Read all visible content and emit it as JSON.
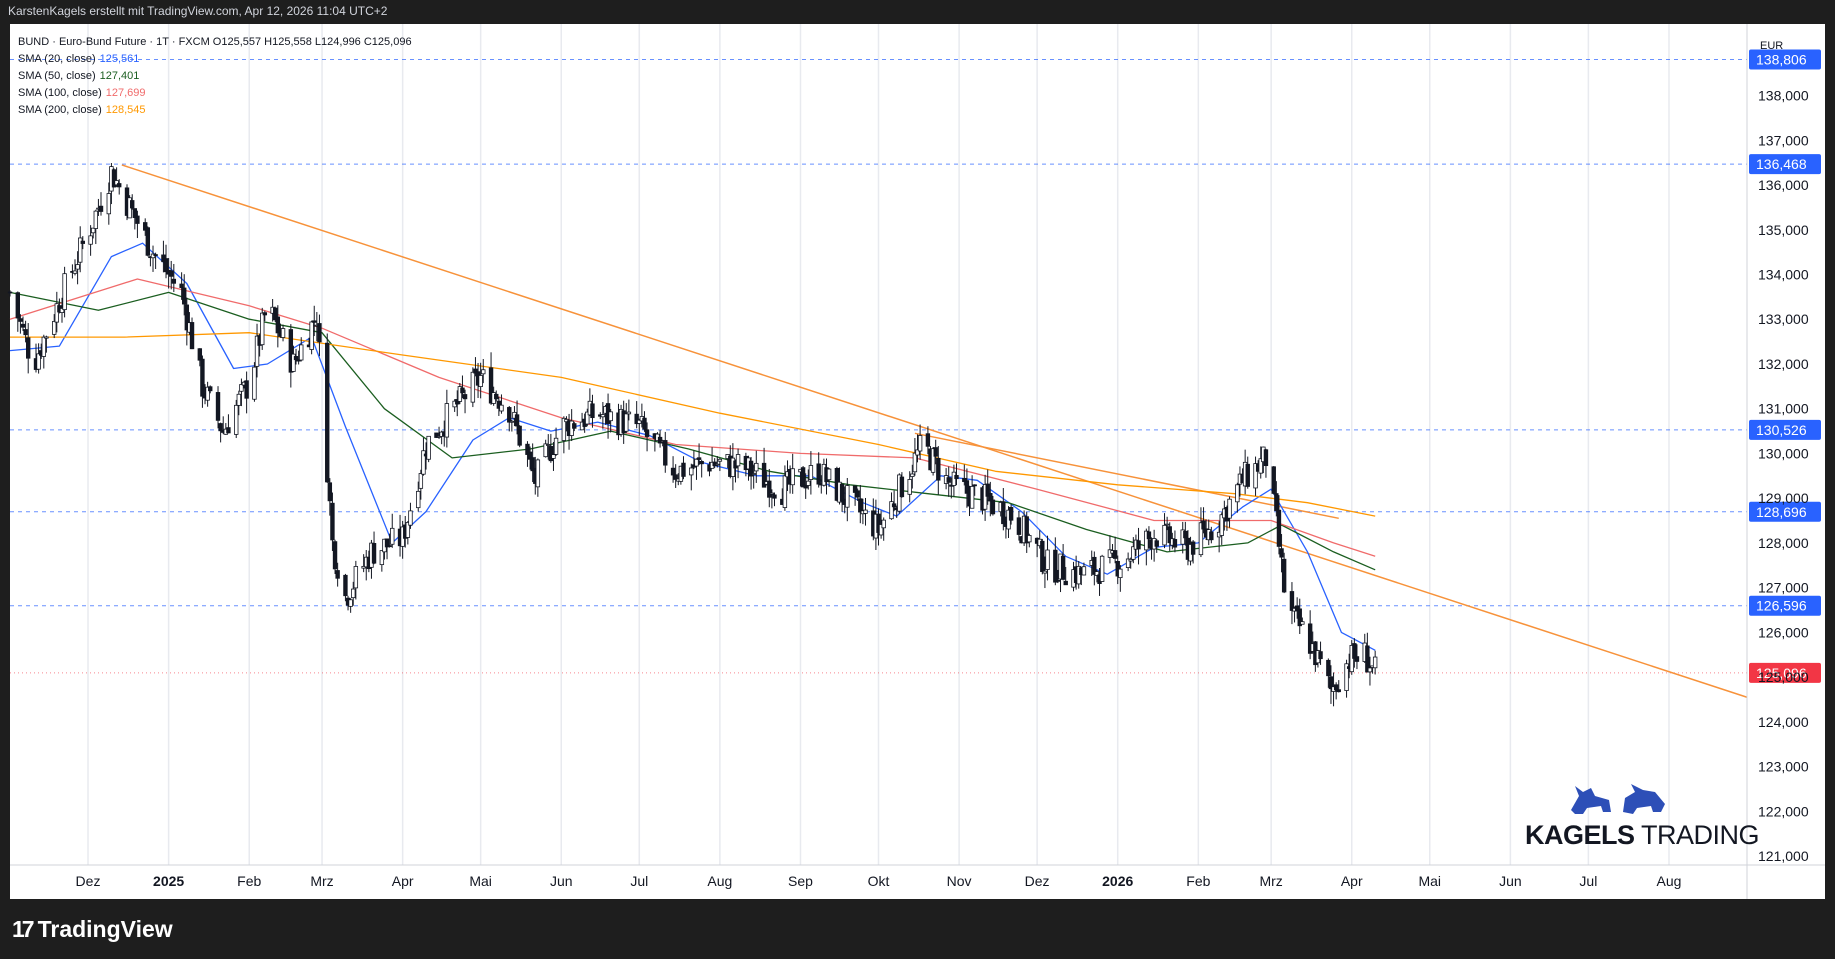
{
  "header": {
    "caption": "KarstenKagels erstellt mit TradingView.com, Apr 12, 2026 11:04 UTC+2"
  },
  "footer": {
    "logo_text": "TradingView"
  },
  "symbol_line": "BUND · Euro-Bund Future · 1T · FXCM  O125,557  H125,558  L124,996  C125,096",
  "indicators": [
    {
      "label": "SMA (20, close)",
      "value": "125,561",
      "color": "#2962ff"
    },
    {
      "label": "SMA (50, close)",
      "value": "127,401",
      "color": "#1b5e20"
    },
    {
      "label": "SMA (100, close)",
      "value": "127,699",
      "color": "#f06b6b"
    },
    {
      "label": "SMA (200, close)",
      "value": "128,545",
      "color": "#ff9800"
    }
  ],
  "brand": {
    "bold": "KAGELS",
    "thin": " TRADING"
  },
  "currency": "EUR",
  "colors": {
    "up": "#26a69a",
    "down": "#7a1f1f",
    "candle_body": "#131722",
    "trendline": "#f7923a",
    "level_line": "#2962ff",
    "last_price_bg": "#f23645",
    "level_label_bg": "#2962ff"
  },
  "chart_data": {
    "type": "candlestick",
    "y_axis": {
      "min": 120.8,
      "max": 139.6,
      "step": 1,
      "tick_labels": [
        "121,000",
        "122,000",
        "123,000",
        "124,000",
        "125,000",
        "126,000",
        "127,000",
        "128,000",
        "129,000",
        "130,000",
        "131,000",
        "132,000",
        "133,000",
        "134,000",
        "135,000",
        "136,000",
        "137,000",
        "138,000"
      ]
    },
    "x_axis": {
      "labels": [
        {
          "text": "Dez",
          "date": "2024-12-01",
          "bold": false
        },
        {
          "text": "2025",
          "date": "2025-01-01",
          "bold": true
        },
        {
          "text": "Feb",
          "date": "2025-02-01",
          "bold": false
        },
        {
          "text": "Mrz",
          "date": "2025-03-01",
          "bold": false
        },
        {
          "text": "Apr",
          "date": "2025-04-01",
          "bold": false
        },
        {
          "text": "Mai",
          "date": "2025-05-01",
          "bold": false
        },
        {
          "text": "Jun",
          "date": "2025-06-01",
          "bold": false
        },
        {
          "text": "Jul",
          "date": "2025-07-01",
          "bold": false
        },
        {
          "text": "Aug",
          "date": "2025-08-01",
          "bold": false
        },
        {
          "text": "Sep",
          "date": "2025-09-01",
          "bold": false
        },
        {
          "text": "Okt",
          "date": "2025-10-01",
          "bold": false
        },
        {
          "text": "Nov",
          "date": "2025-11-01",
          "bold": false
        },
        {
          "text": "Dez",
          "date": "2025-12-01",
          "bold": false
        },
        {
          "text": "2026",
          "date": "2026-01-01",
          "bold": true
        },
        {
          "text": "Feb",
          "date": "2026-02-01",
          "bold": false
        },
        {
          "text": "Mrz",
          "date": "2026-03-01",
          "bold": false
        },
        {
          "text": "Apr",
          "date": "2026-04-01",
          "bold": false
        },
        {
          "text": "Mai",
          "date": "2026-05-01",
          "bold": false
        },
        {
          "text": "Jun",
          "date": "2026-06-01",
          "bold": false
        },
        {
          "text": "Jul",
          "date": "2026-07-01",
          "bold": false
        },
        {
          "text": "Aug",
          "date": "2026-08-01",
          "bold": false
        }
      ],
      "range": [
        "2024-11-01",
        "2026-08-31"
      ]
    },
    "levels": [
      {
        "value": 138.806,
        "label": "138,806"
      },
      {
        "value": 136.468,
        "label": "136,468"
      },
      {
        "value": 130.526,
        "label": "130,526"
      },
      {
        "value": 128.696,
        "label": "128,696"
      },
      {
        "value": 126.596,
        "label": "126,596"
      }
    ],
    "last_price": {
      "value": 125.096,
      "label": "125,096"
    },
    "trendlines": [
      {
        "from": {
          "date": "2024-12-14",
          "value": 136.45
        },
        "to": {
          "date": "2026-08-31",
          "value": 124.55
        }
      },
      {
        "from": {
          "date": "2025-10-15",
          "value": 130.45
        },
        "to": {
          "date": "2026-03-27",
          "value": 128.55
        }
      }
    ],
    "price_path": [
      {
        "date": "2024-11-01",
        "value": 133.6
      },
      {
        "date": "2024-11-10",
        "value": 132.0
      },
      {
        "date": "2024-11-22",
        "value": 133.7
      },
      {
        "date": "2024-12-03",
        "value": 135.2
      },
      {
        "date": "2024-12-10",
        "value": 136.3
      },
      {
        "date": "2024-12-18",
        "value": 135.4
      },
      {
        "date": "2024-12-26",
        "value": 134.5
      },
      {
        "date": "2025-01-06",
        "value": 133.6
      },
      {
        "date": "2025-01-14",
        "value": 131.5
      },
      {
        "date": "2025-01-22",
        "value": 130.5
      },
      {
        "date": "2025-02-01",
        "value": 131.6
      },
      {
        "date": "2025-02-08",
        "value": 133.3
      },
      {
        "date": "2025-02-18",
        "value": 132.0
      },
      {
        "date": "2025-02-27",
        "value": 133.1
      },
      {
        "date": "2025-03-05",
        "value": 128.0
      },
      {
        "date": "2025-03-10",
        "value": 126.8
      },
      {
        "date": "2025-03-20",
        "value": 127.8
      },
      {
        "date": "2025-04-01",
        "value": 128.1
      },
      {
        "date": "2025-04-10",
        "value": 130.2
      },
      {
        "date": "2025-04-22",
        "value": 131.1
      },
      {
        "date": "2025-05-01",
        "value": 131.7
      },
      {
        "date": "2025-05-12",
        "value": 131.0
      },
      {
        "date": "2025-05-22",
        "value": 129.4
      },
      {
        "date": "2025-06-01",
        "value": 130.6
      },
      {
        "date": "2025-06-15",
        "value": 130.9
      },
      {
        "date": "2025-07-01",
        "value": 130.6
      },
      {
        "date": "2025-07-15",
        "value": 129.6
      },
      {
        "date": "2025-07-28",
        "value": 129.8
      },
      {
        "date": "2025-08-10",
        "value": 129.7
      },
      {
        "date": "2025-08-25",
        "value": 129.2
      },
      {
        "date": "2025-09-08",
        "value": 129.6
      },
      {
        "date": "2025-09-20",
        "value": 128.9
      },
      {
        "date": "2025-10-01",
        "value": 128.3
      },
      {
        "date": "2025-10-10",
        "value": 129.3
      },
      {
        "date": "2025-10-18",
        "value": 130.2
      },
      {
        "date": "2025-10-28",
        "value": 129.3
      },
      {
        "date": "2025-11-10",
        "value": 129.0
      },
      {
        "date": "2025-11-22",
        "value": 128.6
      },
      {
        "date": "2025-12-05",
        "value": 127.5
      },
      {
        "date": "2025-12-18",
        "value": 127.3
      },
      {
        "date": "2026-01-03",
        "value": 127.6
      },
      {
        "date": "2026-01-15",
        "value": 128.2
      },
      {
        "date": "2026-01-28",
        "value": 127.9
      },
      {
        "date": "2026-02-08",
        "value": 128.4
      },
      {
        "date": "2026-02-18",
        "value": 129.4
      },
      {
        "date": "2026-02-27",
        "value": 129.9
      },
      {
        "date": "2026-03-03",
        "value": 128.4
      },
      {
        "date": "2026-03-07",
        "value": 126.5
      },
      {
        "date": "2026-03-15",
        "value": 125.9
      },
      {
        "date": "2026-03-24",
        "value": 124.7
      },
      {
        "date": "2026-03-31",
        "value": 125.4
      },
      {
        "date": "2026-04-06",
        "value": 125.5
      },
      {
        "date": "2026-04-10",
        "value": 125.1
      }
    ],
    "sma_lines": [
      {
        "name": "SMA (20, close)",
        "color": "#2962ff",
        "points": [
          {
            "date": "2024-11-01",
            "value": 132.3
          },
          {
            "date": "2024-11-20",
            "value": 132.4
          },
          {
            "date": "2024-12-10",
            "value": 134.4
          },
          {
            "date": "2024-12-22",
            "value": 134.7
          },
          {
            "date": "2025-01-08",
            "value": 133.8
          },
          {
            "date": "2025-01-26",
            "value": 131.9
          },
          {
            "date": "2025-02-08",
            "value": 132.0
          },
          {
            "date": "2025-02-25",
            "value": 132.6
          },
          {
            "date": "2025-03-10",
            "value": 130.6
          },
          {
            "date": "2025-03-28",
            "value": 128.0
          },
          {
            "date": "2025-04-10",
            "value": 128.7
          },
          {
            "date": "2025-04-28",
            "value": 130.3
          },
          {
            "date": "2025-05-12",
            "value": 130.8
          },
          {
            "date": "2025-05-28",
            "value": 130.5
          },
          {
            "date": "2025-06-15",
            "value": 130.7
          },
          {
            "date": "2025-07-05",
            "value": 130.4
          },
          {
            "date": "2025-07-25",
            "value": 129.8
          },
          {
            "date": "2025-08-15",
            "value": 129.5
          },
          {
            "date": "2025-09-05",
            "value": 129.5
          },
          {
            "date": "2025-09-25",
            "value": 128.9
          },
          {
            "date": "2025-10-08",
            "value": 128.6
          },
          {
            "date": "2025-10-25",
            "value": 129.5
          },
          {
            "date": "2025-11-08",
            "value": 129.4
          },
          {
            "date": "2025-11-25",
            "value": 128.7
          },
          {
            "date": "2025-12-12",
            "value": 127.7
          },
          {
            "date": "2025-12-28",
            "value": 127.3
          },
          {
            "date": "2026-01-15",
            "value": 127.9
          },
          {
            "date": "2026-02-01",
            "value": 128.0
          },
          {
            "date": "2026-02-18",
            "value": 128.8
          },
          {
            "date": "2026-03-01",
            "value": 129.2
          },
          {
            "date": "2026-03-15",
            "value": 127.8
          },
          {
            "date": "2026-03-28",
            "value": 126.0
          },
          {
            "date": "2026-04-10",
            "value": 125.6
          }
        ]
      },
      {
        "name": "SMA (50, close)",
        "color": "#1b5e20",
        "points": [
          {
            "date": "2024-11-01",
            "value": 133.6
          },
          {
            "date": "2024-12-05",
            "value": 133.2
          },
          {
            "date": "2025-01-01",
            "value": 133.6
          },
          {
            "date": "2025-02-01",
            "value": 133.0
          },
          {
            "date": "2025-03-01",
            "value": 132.7
          },
          {
            "date": "2025-03-25",
            "value": 131.0
          },
          {
            "date": "2025-04-20",
            "value": 129.9
          },
          {
            "date": "2025-05-20",
            "value": 130.1
          },
          {
            "date": "2025-06-20",
            "value": 130.5
          },
          {
            "date": "2025-07-20",
            "value": 130.1
          },
          {
            "date": "2025-08-20",
            "value": 129.6
          },
          {
            "date": "2025-09-20",
            "value": 129.3
          },
          {
            "date": "2025-10-20",
            "value": 129.1
          },
          {
            "date": "2025-11-20",
            "value": 128.9
          },
          {
            "date": "2025-12-20",
            "value": 128.3
          },
          {
            "date": "2026-01-20",
            "value": 127.8
          },
          {
            "date": "2026-02-20",
            "value": 128.0
          },
          {
            "date": "2026-03-05",
            "value": 128.4
          },
          {
            "date": "2026-03-25",
            "value": 127.8
          },
          {
            "date": "2026-04-10",
            "value": 127.4
          }
        ]
      },
      {
        "name": "SMA (100, close)",
        "color": "#f06b6b",
        "points": [
          {
            "date": "2024-11-01",
            "value": 133.0
          },
          {
            "date": "2024-12-20",
            "value": 133.9
          },
          {
            "date": "2025-02-01",
            "value": 133.3
          },
          {
            "date": "2025-03-01",
            "value": 132.8
          },
          {
            "date": "2025-04-15",
            "value": 131.7
          },
          {
            "date": "2025-06-01",
            "value": 130.8
          },
          {
            "date": "2025-07-15",
            "value": 130.2
          },
          {
            "date": "2025-09-01",
            "value": 130.0
          },
          {
            "date": "2025-10-15",
            "value": 129.9
          },
          {
            "date": "2025-12-01",
            "value": 129.2
          },
          {
            "date": "2026-01-15",
            "value": 128.5
          },
          {
            "date": "2026-03-01",
            "value": 128.5
          },
          {
            "date": "2026-03-25",
            "value": 128.0
          },
          {
            "date": "2026-04-10",
            "value": 127.7
          }
        ]
      },
      {
        "name": "SMA (200, close)",
        "color": "#ff9800",
        "points": [
          {
            "date": "2024-11-01",
            "value": 132.6
          },
          {
            "date": "2024-12-15",
            "value": 132.6
          },
          {
            "date": "2025-02-01",
            "value": 132.7
          },
          {
            "date": "2025-04-01",
            "value": 132.2
          },
          {
            "date": "2025-06-01",
            "value": 131.7
          },
          {
            "date": "2025-08-01",
            "value": 130.9
          },
          {
            "date": "2025-10-01",
            "value": 130.2
          },
          {
            "date": "2025-11-15",
            "value": 129.6
          },
          {
            "date": "2026-01-01",
            "value": 129.3
          },
          {
            "date": "2026-02-15",
            "value": 129.1
          },
          {
            "date": "2026-03-15",
            "value": 128.9
          },
          {
            "date": "2026-04-10",
            "value": 128.6
          }
        ]
      }
    ]
  }
}
